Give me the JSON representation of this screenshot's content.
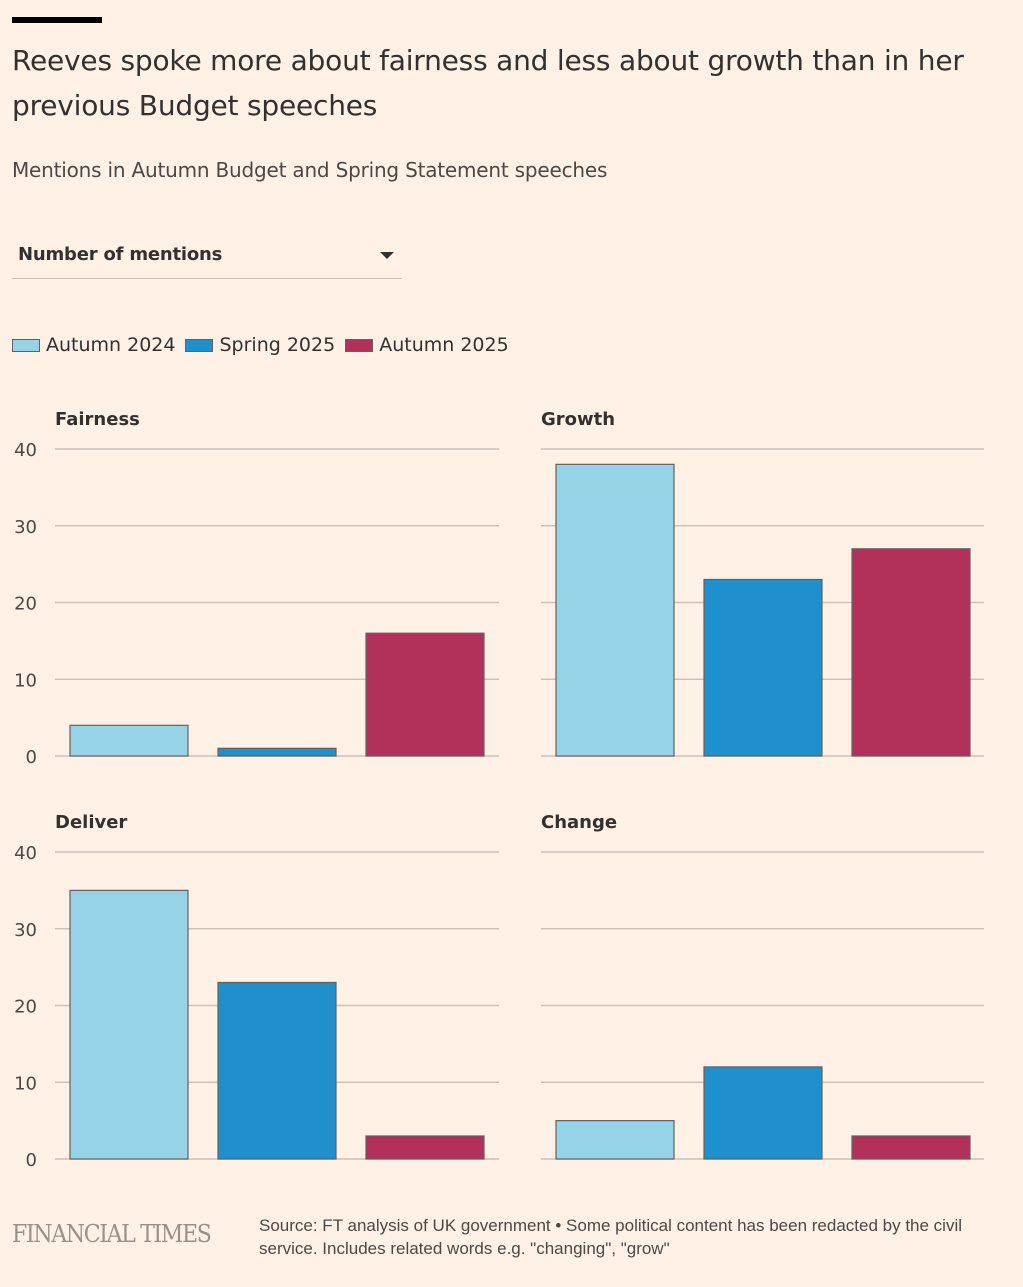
{
  "header": {
    "title": "Reeves spoke more about fairness and less about growth than in her previous Budget speeches",
    "subtitle": "Mentions in Autumn Budget and Spring Statement speeches"
  },
  "controls": {
    "metric_dropdown": {
      "selected": "Number of mentions",
      "icon": "caret-down-icon"
    }
  },
  "legend": [
    {
      "label": "Autumn 2024",
      "color": "#96d3e6"
    },
    {
      "label": "Spring 2025",
      "color": "#1f8fcd"
    },
    {
      "label": "Autumn 2025",
      "color": "#b2315b"
    }
  ],
  "chart_data": {
    "type": "bar",
    "title": "Reeves spoke more about fairness and less about growth than in her previous Budget speeches",
    "subtitle": "Mentions in Autumn Budget and Spring Statement speeches",
    "ylabel": "Number of mentions",
    "xlabel": "",
    "ylim": [
      0,
      40
    ],
    "yticks": [
      0,
      10,
      20,
      30,
      40
    ],
    "grid": true,
    "legend_position": "top-left",
    "series_names": [
      "Autumn 2024",
      "Spring 2025",
      "Autumn 2025"
    ],
    "colors": [
      "#96d3e6",
      "#1f8fcd",
      "#b2315b"
    ],
    "panels": [
      {
        "title": "Fairness",
        "values": [
          4,
          1,
          16
        ]
      },
      {
        "title": "Growth",
        "values": [
          38,
          23,
          27
        ]
      },
      {
        "title": "Deliver",
        "values": [
          35,
          23,
          3
        ]
      },
      {
        "title": "Change",
        "values": [
          5,
          12,
          3
        ]
      }
    ]
  },
  "footer": {
    "logo": "FINANCIAL TIMES",
    "source": "Source: FT analysis of UK government • Some political content has been redacted by the civil service. Includes related words e.g. \"changing\", \"grow\""
  }
}
